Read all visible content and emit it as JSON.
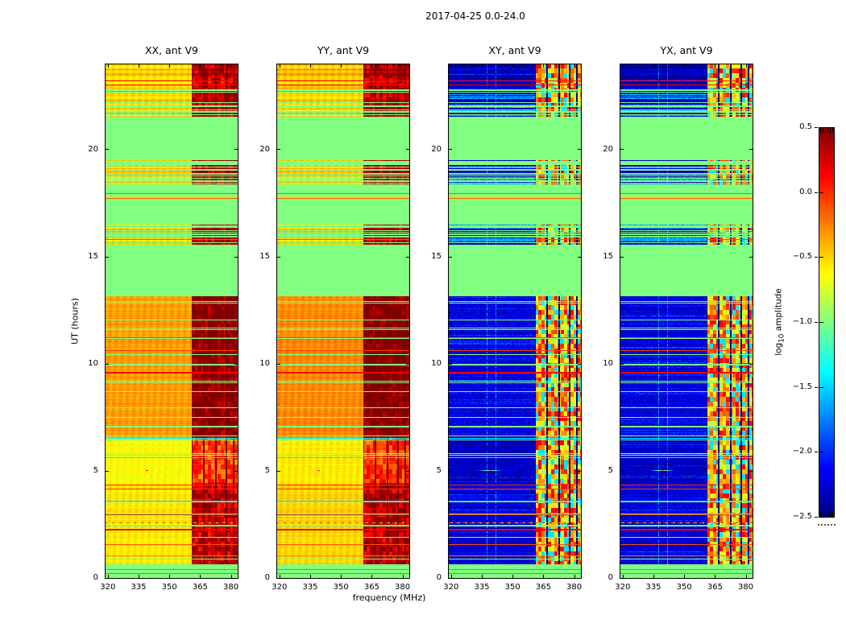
{
  "figure": {
    "title": "2017-04-25 0.0-24.0",
    "background": "#ffffff",
    "frame_color": "#000000"
  },
  "chart_data": {
    "type": "heatmap",
    "title": "2017-04-25 0.0-24.0",
    "panels": [
      {
        "label": "XX, ant V9",
        "pol": "XX",
        "kind": "parallel"
      },
      {
        "label": "YY, ant V9",
        "pol": "YY",
        "kind": "parallel"
      },
      {
        "label": "XY, ant V9",
        "pol": "XY",
        "kind": "cross"
      },
      {
        "label": "YX, ant V9",
        "pol": "YX",
        "kind": "cross"
      }
    ],
    "xaxis": {
      "label": "frequency (MHz)",
      "range": [
        318.5,
        383.3
      ],
      "ticks": [
        320,
        335,
        350,
        365,
        380
      ]
    },
    "yaxis": {
      "label": "UT (hours)",
      "range": [
        0,
        24
      ],
      "ticks": [
        0,
        5,
        10,
        15,
        20
      ]
    },
    "colorbar": {
      "label": "log10 amplitude",
      "label_log": "log",
      "label_sub": "10",
      "label_rest": " amplitude",
      "tick_labels": [
        "0.5",
        "0.0",
        "−0.5",
        "−1.0",
        "−1.5",
        "−2.0",
        "−2.5"
      ],
      "tick_values": [
        0.5,
        0.0,
        -0.5,
        -1.0,
        -1.5,
        -2.0,
        -2.5
      ],
      "vmin": -2.5,
      "vmax": 0.5,
      "cmap": "jet"
    },
    "grid": false,
    "legend": false,
    "features": {
      "off_value": -1.0,
      "bands": [
        {
          "t0": 0.0,
          "t1": 0.67,
          "kind": "off"
        },
        {
          "t0": 0.67,
          "t1": 4.45,
          "kind": "act1",
          "warm": -0.56,
          "cool": -2.25
        },
        {
          "t0": 4.45,
          "t1": 6.5,
          "kind": "act2",
          "warm": -0.63,
          "cool": -2.32
        },
        {
          "t0": 6.5,
          "t1": 13.15,
          "kind": "act3",
          "warm": -0.33,
          "cool": -2.22
        },
        {
          "t0": 13.15,
          "t1": 15.5,
          "kind": "off"
        },
        {
          "t0": 15.5,
          "t1": 16.5,
          "kind": "stripes",
          "density": 0.5
        },
        {
          "t0": 16.5,
          "t1": 18.3,
          "kind": "off"
        },
        {
          "t0": 18.3,
          "t1": 19.5,
          "kind": "stripes",
          "density": 0.5
        },
        {
          "t0": 19.5,
          "t1": 21.55,
          "kind": "off"
        },
        {
          "t0": 21.55,
          "t1": 22.8,
          "kind": "stripes",
          "density": 0.68
        },
        {
          "t0": 22.8,
          "t1": 24.0,
          "kind": "top",
          "warm": -0.5,
          "cool": -2.35
        }
      ],
      "h_lines": [
        {
          "t": 0.22,
          "v": -0.12
        },
        {
          "t": 0.4,
          "v": -0.18
        },
        {
          "t": 1.05,
          "v": -0.25
        },
        {
          "t": 1.58,
          "v": -0.1
        },
        {
          "t": 2.28,
          "v": 0.15,
          "w": 2
        },
        {
          "t": 2.58,
          "v": 0.0,
          "dashed": true
        },
        {
          "t": 2.98,
          "v": 0.05
        },
        {
          "t": 3.62,
          "v": -1.45
        },
        {
          "t": 4.16,
          "v": -0.05
        },
        {
          "t": 4.34,
          "v": 0.0
        },
        {
          "t": 5.64,
          "v": -1.42
        },
        {
          "t": 6.54,
          "v": -1.38
        },
        {
          "t": 9.62,
          "v": 0.12,
          "w": 2
        },
        {
          "t": 10.62,
          "v": -0.05
        },
        {
          "t": 11.22,
          "v": -0.1
        },
        {
          "t": 15.82,
          "v": -0.1
        },
        {
          "t": 17.72,
          "v": -0.14
        },
        {
          "t": 17.84,
          "v": -0.5
        },
        {
          "t": 17.96,
          "v": -0.14
        },
        {
          "t": 23.03,
          "v": 0.1
        },
        {
          "t": 23.22,
          "v": 0.06
        }
      ],
      "rfi": {
        "f0": 361,
        "f1": 383.3,
        "gaps": [
          366.3,
          372.3,
          377.4,
          380.9
        ]
      },
      "point_source": {
        "t": 5.05,
        "f": 339
      },
      "cool_vlines_f": [
        337.5,
        341.5
      ]
    }
  }
}
